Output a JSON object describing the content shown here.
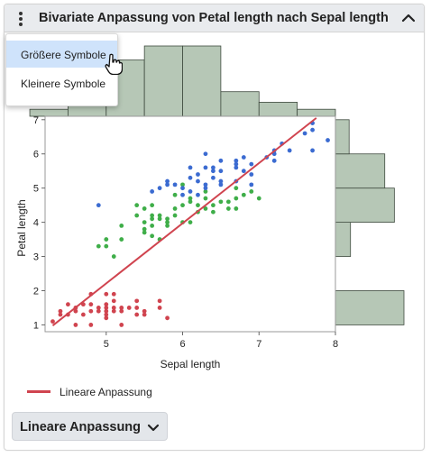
{
  "header": {
    "title": "Bivariate Anpassung von Petal length nach Sepal length",
    "menu_icon": "kebab-menu-icon",
    "collapse_icon": "chevron-up-icon"
  },
  "context_menu": {
    "items": [
      {
        "label": "Größere Symbole",
        "highlighted": true
      },
      {
        "label": "Kleinere Symbole",
        "highlighted": false
      }
    ]
  },
  "chart_data": {
    "type": "scatter",
    "xlabel": "Sepal length",
    "ylabel": "Petal length",
    "xlim": [
      4.2,
      8.0
    ],
    "ylim": [
      0.8,
      7.1
    ],
    "xticks": [
      "5",
      "6",
      "7",
      "8"
    ],
    "yticks": [
      "1",
      "2",
      "3",
      "4",
      "5",
      "6",
      "7"
    ],
    "series": [
      {
        "color": "#d0444f",
        "points": [
          [
            4.3,
            1.1
          ],
          [
            4.4,
            1.3
          ],
          [
            4.4,
            1.4
          ],
          [
            4.5,
            1.3
          ],
          [
            4.6,
            1.0
          ],
          [
            4.6,
            1.4
          ],
          [
            4.6,
            1.5
          ],
          [
            4.7,
            1.3
          ],
          [
            4.7,
            1.6
          ],
          [
            4.8,
            1.4
          ],
          [
            4.8,
            1.6
          ],
          [
            4.8,
            1.9
          ],
          [
            4.9,
            1.4
          ],
          [
            4.9,
            1.5
          ],
          [
            5.0,
            1.2
          ],
          [
            5.0,
            1.3
          ],
          [
            5.0,
            1.4
          ],
          [
            5.0,
            1.5
          ],
          [
            5.0,
            1.6
          ],
          [
            5.1,
            1.4
          ],
          [
            5.1,
            1.5
          ],
          [
            5.1,
            1.7
          ],
          [
            5.1,
            1.9
          ],
          [
            5.2,
            1.4
          ],
          [
            5.2,
            1.5
          ],
          [
            5.3,
            1.5
          ],
          [
            5.4,
            1.3
          ],
          [
            5.4,
            1.5
          ],
          [
            5.4,
            1.7
          ],
          [
            5.5,
            1.3
          ],
          [
            5.5,
            1.4
          ],
          [
            5.7,
            1.5
          ],
          [
            5.7,
            1.7
          ],
          [
            5.8,
            1.2
          ],
          [
            4.8,
            1.0
          ],
          [
            5.2,
            1.0
          ],
          [
            4.5,
            1.6
          ],
          [
            5.0,
            1.9
          ]
        ]
      },
      {
        "color": "#3fae49",
        "points": [
          [
            4.9,
            3.3
          ],
          [
            5.0,
            3.3
          ],
          [
            5.0,
            3.5
          ],
          [
            5.1,
            3.0
          ],
          [
            5.2,
            3.9
          ],
          [
            5.4,
            4.5
          ],
          [
            5.5,
            3.7
          ],
          [
            5.5,
            3.8
          ],
          [
            5.5,
            4.0
          ],
          [
            5.5,
            4.4
          ],
          [
            5.6,
            3.6
          ],
          [
            5.6,
            3.9
          ],
          [
            5.6,
            4.1
          ],
          [
            5.6,
            4.2
          ],
          [
            5.6,
            4.5
          ],
          [
            5.7,
            3.5
          ],
          [
            5.7,
            4.1
          ],
          [
            5.7,
            4.2
          ],
          [
            5.8,
            3.9
          ],
          [
            5.8,
            4.0
          ],
          [
            5.8,
            4.1
          ],
          [
            5.9,
            4.2
          ],
          [
            5.9,
            4.8
          ],
          [
            6.0,
            4.0
          ],
          [
            6.0,
            4.5
          ],
          [
            6.0,
            5.1
          ],
          [
            6.1,
            4.0
          ],
          [
            6.1,
            4.6
          ],
          [
            6.1,
            4.7
          ],
          [
            6.2,
            4.3
          ],
          [
            6.2,
            4.5
          ],
          [
            6.3,
            4.4
          ],
          [
            6.3,
            4.7
          ],
          [
            6.3,
            4.9
          ],
          [
            6.4,
            4.3
          ],
          [
            6.4,
            4.5
          ],
          [
            6.5,
            4.6
          ],
          [
            6.6,
            4.4
          ],
          [
            6.6,
            4.6
          ],
          [
            6.7,
            4.4
          ],
          [
            6.7,
            4.7
          ],
          [
            6.7,
            5.0
          ],
          [
            6.8,
            4.8
          ],
          [
            6.9,
            4.9
          ],
          [
            7.0,
            4.7
          ],
          [
            5.2,
            3.5
          ],
          [
            5.4,
            4.2
          ],
          [
            5.9,
            4.4
          ]
        ]
      },
      {
        "color": "#3b6bd1",
        "points": [
          [
            4.9,
            4.5
          ],
          [
            5.6,
            4.9
          ],
          [
            5.7,
            5.0
          ],
          [
            5.8,
            5.1
          ],
          [
            5.9,
            5.1
          ],
          [
            6.0,
            4.8
          ],
          [
            6.0,
            5.0
          ],
          [
            6.1,
            4.9
          ],
          [
            6.1,
            5.6
          ],
          [
            6.2,
            4.8
          ],
          [
            6.2,
            5.4
          ],
          [
            6.3,
            5.0
          ],
          [
            6.3,
            5.1
          ],
          [
            6.3,
            5.6
          ],
          [
            6.3,
            6.0
          ],
          [
            6.4,
            5.3
          ],
          [
            6.4,
            5.5
          ],
          [
            6.4,
            5.6
          ],
          [
            6.5,
            5.1
          ],
          [
            6.5,
            5.2
          ],
          [
            6.5,
            5.5
          ],
          [
            6.5,
            5.8
          ],
          [
            6.7,
            5.2
          ],
          [
            6.7,
            5.6
          ],
          [
            6.7,
            5.7
          ],
          [
            6.7,
            5.8
          ],
          [
            6.8,
            5.5
          ],
          [
            6.8,
            5.9
          ],
          [
            6.9,
            5.1
          ],
          [
            6.9,
            5.4
          ],
          [
            6.9,
            5.7
          ],
          [
            7.1,
            5.9
          ],
          [
            7.2,
            5.8
          ],
          [
            7.2,
            6.0
          ],
          [
            7.2,
            6.1
          ],
          [
            7.3,
            6.3
          ],
          [
            7.4,
            6.1
          ],
          [
            7.6,
            6.6
          ],
          [
            7.7,
            6.1
          ],
          [
            7.7,
            6.7
          ],
          [
            7.7,
            6.9
          ],
          [
            7.9,
            6.4
          ],
          [
            6.1,
            5.3
          ],
          [
            5.8,
            5.2
          ],
          [
            6.2,
            5.2
          ]
        ]
      }
    ],
    "fit_line": {
      "label": "Lineare Anpassung",
      "color": "#d0444f",
      "x": [
        4.3,
        7.75
      ],
      "y": [
        0.98,
        7.05
      ]
    },
    "top_histogram": {
      "bins": [
        4.0,
        4.5,
        5.0,
        5.5,
        6.0,
        6.5,
        7.0,
        7.5,
        8.0
      ],
      "counts": [
        4,
        23,
        32,
        40,
        40,
        14,
        8,
        4
      ]
    },
    "right_histogram": {
      "bins": [
        1,
        2,
        3,
        4,
        5,
        6,
        7
      ],
      "counts": [
        50,
        0,
        11,
        43,
        36,
        10
      ],
      "partial": true
    },
    "grid": false,
    "legend": "bottom-left"
  },
  "legend": {
    "label": "Lineare Anpassung",
    "color": "#d0444f"
  },
  "fit_button": {
    "label": "Lineare Anpassung",
    "icon": "chevron-down-icon"
  }
}
